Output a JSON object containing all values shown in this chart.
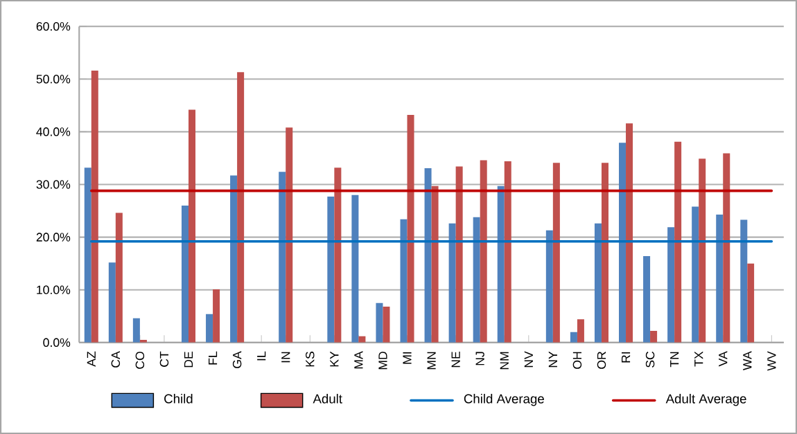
{
  "chart_data": {
    "type": "bar",
    "categories": [
      "AZ",
      "CA",
      "CO",
      "CT",
      "DE",
      "FL",
      "GA",
      "IL",
      "IN",
      "KS",
      "KY",
      "MA",
      "MD",
      "MI",
      "MN",
      "NE",
      "NJ",
      "NM",
      "NV",
      "NY",
      "OH",
      "OR",
      "RI",
      "SC",
      "TN",
      "TX",
      "VA",
      "WA",
      "WV"
    ],
    "series": [
      {
        "name": "Child",
        "color": "#4f81bd",
        "values": [
          33.2,
          15.2,
          4.6,
          null,
          26.0,
          5.4,
          31.7,
          null,
          32.4,
          null,
          27.7,
          28.0,
          7.5,
          23.4,
          33.1,
          22.6,
          23.8,
          29.7,
          null,
          21.3,
          2.0,
          22.6,
          37.9,
          16.4,
          21.9,
          25.8,
          24.3,
          23.3,
          null
        ]
      },
      {
        "name": "Adult",
        "color": "#c0504d",
        "values": [
          51.6,
          24.6,
          0.5,
          null,
          44.2,
          10.1,
          51.3,
          null,
          40.8,
          null,
          33.2,
          1.2,
          6.8,
          43.2,
          29.7,
          33.4,
          34.6,
          34.4,
          null,
          34.1,
          4.4,
          34.1,
          41.6,
          2.2,
          38.1,
          34.9,
          35.9,
          15.0,
          null
        ]
      }
    ],
    "ref_lines": [
      {
        "axis": "y",
        "value": 19.2,
        "label": "Child Average",
        "color": "#0070c0"
      },
      {
        "axis": "y",
        "value": 28.8,
        "label": "Adult Average",
        "color": "#c00000"
      }
    ],
    "ylim": [
      0,
      60
    ],
    "yticks": [
      {
        "value": 0,
        "label": "0.0%"
      },
      {
        "value": 10,
        "label": "10.0%"
      },
      {
        "value": 20,
        "label": "20.0%"
      },
      {
        "value": 30,
        "label": "30.0%"
      },
      {
        "value": 40,
        "label": "40.0%"
      },
      {
        "value": 50,
        "label": "50.0%"
      },
      {
        "value": 60,
        "label": "60.0%"
      }
    ],
    "grid": "y",
    "legend": "bottom"
  }
}
